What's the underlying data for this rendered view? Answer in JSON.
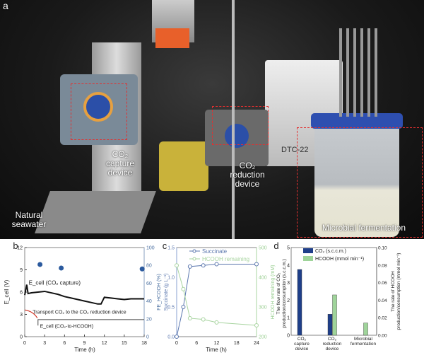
{
  "photo": {
    "panel": "a",
    "labels": {
      "capture": "CO₂\ncapture\ndevice",
      "reduction": "CO₂\nreduction\ndevice",
      "seawater": "Natural\nseawater",
      "fermentation": "Microbial fermentation",
      "chiller": "DTC-22"
    }
  },
  "chart_data": [
    {
      "panel": "b",
      "type": "line+scatter",
      "xlabel": "Time (h)",
      "ylabel": "E_cell (V)",
      "y2label": "FE_HCOOH (%)",
      "xlim": [
        0,
        18
      ],
      "ylim": [
        0,
        12
      ],
      "y2lim": [
        0,
        100
      ],
      "xticks": [
        0,
        3,
        6,
        9,
        12,
        15,
        18
      ],
      "yticks": [
        0,
        3,
        6,
        9,
        12
      ],
      "y2ticks": [
        0,
        20,
        40,
        60,
        80,
        100
      ],
      "series": [
        {
          "name": "E_cell (CO2 capture)",
          "axis": "left",
          "x": [
            0,
            0.3,
            0.5,
            1,
            2,
            3,
            4,
            5,
            6,
            7,
            8,
            9,
            10,
            11,
            11.5,
            12,
            13,
            14,
            15,
            16,
            17,
            18
          ],
          "y": [
            5.6,
            7.0,
            5.8,
            5.9,
            6.0,
            6.1,
            5.9,
            5.7,
            5.4,
            5.2,
            5.0,
            4.8,
            4.6,
            4.4,
            4.4,
            5.3,
            5.2,
            5.1,
            5.0,
            5.1,
            5.1,
            5.1
          ]
        },
        {
          "name": "E_cell (CO2-to-HCOOH)",
          "axis": "left",
          "x": [
            2,
            2,
            18
          ],
          "y": [
            1.5,
            2.3,
            2.3
          ]
        },
        {
          "name": "FE_HCOOH",
          "axis": "right",
          "type": "scatter",
          "x": [
            2.3,
            5.5,
            17.7
          ],
          "y": [
            81,
            77,
            76
          ]
        }
      ],
      "annotations": [
        "E_cell (CO₂ capture)",
        "Transport CO₂ to the CO₂ reduction device",
        "E_cell (CO₂-to-HCOOH)"
      ],
      "colors": {
        "ecell": "#111111",
        "fe": "#2b5a9e",
        "arrow": "#d03020"
      }
    },
    {
      "panel": "c",
      "type": "line",
      "xlabel": "Time (h)",
      "ylabel": "Succinate (g L⁻¹)",
      "y2label": "HCOOH remaining (mM)",
      "xlim": [
        0,
        24
      ],
      "ylim": [
        0,
        1.5
      ],
      "y2lim": [
        200,
        500
      ],
      "xticks": [
        0,
        6,
        12,
        18,
        24
      ],
      "yticks": [
        0.0,
        0.5,
        1.0,
        1.5
      ],
      "y2ticks": [
        200,
        300,
        400,
        500
      ],
      "series": [
        {
          "name": "Succinate",
          "axis": "left",
          "x": [
            0,
            2,
            4,
            8,
            12,
            24
          ],
          "y": [
            0,
            0.5,
            1.18,
            1.2,
            1.22,
            1.22
          ],
          "color": "#5b77ae"
        },
        {
          "name": "HCOOH remaining",
          "axis": "right",
          "x": [
            0,
            2,
            4,
            8,
            12,
            24
          ],
          "y": [
            440,
            360,
            262,
            258,
            248,
            238
          ],
          "color": "#a8d4a0"
        }
      ]
    },
    {
      "panel": "d",
      "type": "bar",
      "categories": [
        "CO₂\ncapture device",
        "CO₂\nreduction device",
        "Microbial\nfermentation"
      ],
      "ylabel": "The flow rate of CO₂ production/consumption (s.c.c.m.)",
      "y2label": "The rate of HCOOH production/consumption (mmol min⁻¹)",
      "ylim": [
        0,
        5
      ],
      "y2lim": [
        0,
        0.1
      ],
      "yticks": [
        0,
        1,
        2,
        3,
        4,
        5
      ],
      "y2ticks": [
        "0.00",
        "0.02",
        "0.04",
        "0.06",
        "0.08",
        "0.10"
      ],
      "series": [
        {
          "name": "CO₂ (s.c.c.m.)",
          "axis": "left",
          "values": [
            3.75,
            1.2,
            null
          ],
          "color": "#1f3f8a"
        },
        {
          "name": "HCOOH (mmol min⁻¹)",
          "axis": "right",
          "values": [
            null,
            0.046,
            0.014
          ],
          "color": "#9fd49a"
        }
      ],
      "legend": "top-left"
    }
  ]
}
